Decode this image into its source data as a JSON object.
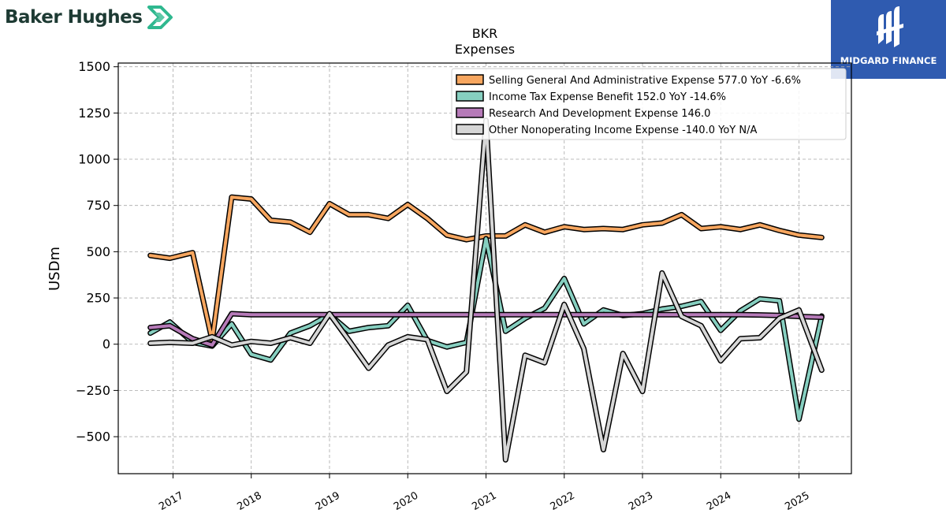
{
  "branding": {
    "left_logo_text": "Baker Hughes",
    "right_logo_text": "MIDGARD FINANCE"
  },
  "colors": {
    "sga": "#f7a65f",
    "tax": "#86cfc0",
    "rnd": "#b67ab8",
    "other": "#d6d6d6",
    "brand_green": "#2fb88f",
    "brand_blue": "#2f5bb0"
  },
  "chart_data": {
    "type": "line",
    "title": "BKR",
    "subtitle": "Expenses",
    "xlabel": "",
    "ylabel": "USDm",
    "ylim": [
      -700,
      1520
    ],
    "yticks": [
      -500,
      -250,
      0,
      250,
      500,
      750,
      1000,
      1250,
      1500
    ],
    "ytick_labels": [
      "−500",
      "−250",
      "0",
      "250",
      "500",
      "750",
      "1000",
      "1250",
      "1500"
    ],
    "xlim": [
      2016.3,
      2025.67
    ],
    "xticks": [
      2017,
      2018,
      2019,
      2020,
      2021,
      2022,
      2023,
      2024,
      2025
    ],
    "xtick_labels": [
      "2017",
      "2018",
      "2019",
      "2020",
      "2021",
      "2022",
      "2023",
      "2024",
      "2025"
    ],
    "grid": true,
    "legend_position": "top-right",
    "x": [
      2016.71,
      2016.96,
      2017.25,
      2017.5,
      2017.75,
      2018.0,
      2018.25,
      2018.5,
      2018.75,
      2019.0,
      2019.25,
      2019.5,
      2019.75,
      2020.0,
      2020.25,
      2020.5,
      2020.75,
      2021.0,
      2021.25,
      2021.5,
      2021.75,
      2022.0,
      2022.25,
      2022.5,
      2022.75,
      2023.0,
      2023.25,
      2023.5,
      2023.75,
      2024.0,
      2024.25,
      2024.5,
      2024.75,
      2025.0,
      2025.29
    ],
    "series": [
      {
        "name": "Selling General And Administrative Expense",
        "legend": "Selling General And Administrative Expense  577.0 YoY -6.6%",
        "color": "#f7a65f",
        "values": [
          480,
          465,
          495,
          20,
          795,
          785,
          670,
          660,
          605,
          760,
          700,
          700,
          680,
          755,
          680,
          590,
          565,
          585,
          585,
          645,
          605,
          635,
          620,
          625,
          620,
          645,
          655,
          700,
          625,
          635,
          620,
          645,
          615,
          590,
          577
        ]
      },
      {
        "name": "Income Tax Expense Benefit",
        "legend": "Income Tax Expense Benefit  152.0 YoY -14.6%",
        "color": "#86cfc0",
        "values": [
          60,
          120,
          10,
          -10,
          110,
          -55,
          -85,
          60,
          100,
          160,
          70,
          90,
          100,
          210,
          20,
          -15,
          10,
          570,
          70,
          140,
          195,
          355,
          110,
          185,
          155,
          165,
          190,
          205,
          230,
          75,
          180,
          245,
          235,
          -405,
          152
        ]
      },
      {
        "name": "Research And Development Expense",
        "legend": "Research And Development Expense  146.0",
        "color": "#b67ab8",
        "values": [
          90,
          100,
          30,
          -5,
          165,
          160,
          160,
          160,
          160,
          160,
          160,
          160,
          160,
          160,
          160,
          160,
          160,
          160,
          160,
          160,
          160,
          160,
          160,
          160,
          160,
          160,
          160,
          160,
          160,
          160,
          160,
          158,
          155,
          150,
          146
        ]
      },
      {
        "name": "Other Nonoperating Income Expense",
        "legend": "Other Nonoperating Income Expense  -140.0 YoY N/A",
        "color": "#d6d6d6",
        "values": [
          5,
          10,
          5,
          40,
          -5,
          15,
          5,
          35,
          5,
          165,
          20,
          -130,
          -5,
          40,
          25,
          -255,
          -150,
          1210,
          -625,
          -60,
          -100,
          215,
          -25,
          -570,
          -50,
          -255,
          385,
          150,
          100,
          -90,
          30,
          35,
          140,
          185,
          -140
        ]
      }
    ]
  }
}
